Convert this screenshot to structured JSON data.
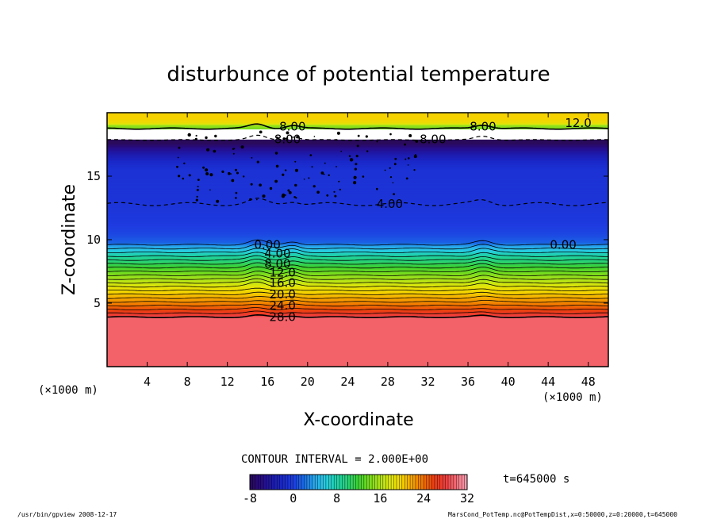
{
  "chart_data": {
    "type": "heatmap",
    "title": "disturbunce of potential temperature",
    "xlabel": "X-coordinate",
    "ylabel": "Z-coordinate",
    "x_unit_left": "(×1000 m)",
    "x_unit_right": "(×1000 m)",
    "xlim": [
      0,
      50
    ],
    "ylim": [
      0,
      20
    ],
    "x_ticks": [
      "4",
      "8",
      "12",
      "16",
      "20",
      "24",
      "28",
      "32",
      "36",
      "40",
      "44",
      "48"
    ],
    "y_ticks": [
      "5",
      "10",
      "15"
    ],
    "contour_interval_text": "CONTOUR INTERVAL = 2.000E+00",
    "time_text": "t=645000 s",
    "colorbar": {
      "min": -8,
      "max": 32,
      "tick_labels": [
        "-8",
        "0",
        "8",
        "16",
        "24",
        "32"
      ]
    },
    "contour_labels": [
      {
        "text": "28.0",
        "x": 17.5,
        "z": 3.9
      },
      {
        "text": "24.0",
        "x": 17.5,
        "z": 4.8
      },
      {
        "text": "20.0",
        "x": 17.5,
        "z": 5.7
      },
      {
        "text": "16.0",
        "x": 17.5,
        "z": 6.6
      },
      {
        "text": "12.0",
        "x": 17.5,
        "z": 7.4
      },
      {
        "text": "8.00",
        "x": 17.0,
        "z": 8.1
      },
      {
        "text": "4.00",
        "x": 17.0,
        "z": 8.9
      },
      {
        "text": "0.00",
        "x": 16.0,
        "z": 9.6
      },
      {
        "text": "0.00",
        "x": 45.5,
        "z": 9.6
      },
      {
        "text": "4.00",
        "x": 28.2,
        "z": 12.8
      },
      {
        "text": "8.00",
        "x": 18.0,
        "z": 17.9
      },
      {
        "text": "8.00",
        "x": 32.5,
        "z": 17.9
      },
      {
        "text": "8.00",
        "x": 18.5,
        "z": 18.9
      },
      {
        "text": "8.00",
        "x": 37.5,
        "z": 18.9
      },
      {
        "text": "12.0",
        "x": 47.0,
        "z": 19.2
      }
    ]
  },
  "footer": {
    "left": "/usr/bin/gpview   2008-12-17",
    "right": "MarsCond_PotTemp.nc@PotTempDist,x=0:50000,z=0:20000,t=645000"
  }
}
